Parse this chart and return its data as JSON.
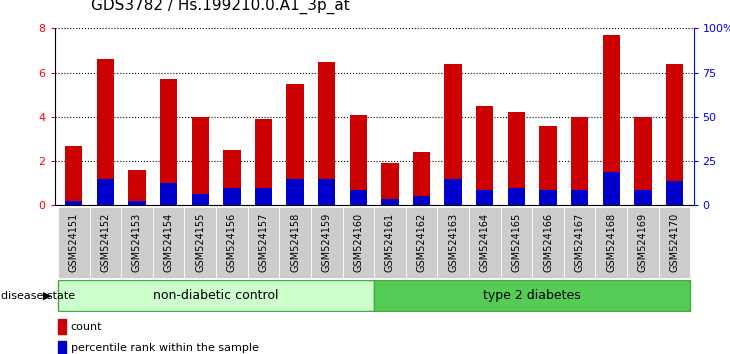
{
  "title": "GDS3782 / Hs.199210.0.A1_3p_at",
  "samples": [
    "GSM524151",
    "GSM524152",
    "GSM524153",
    "GSM524154",
    "GSM524155",
    "GSM524156",
    "GSM524157",
    "GSM524158",
    "GSM524159",
    "GSM524160",
    "GSM524161",
    "GSM524162",
    "GSM524163",
    "GSM524164",
    "GSM524165",
    "GSM524166",
    "GSM524167",
    "GSM524168",
    "GSM524169",
    "GSM524170"
  ],
  "count_values": [
    2.7,
    6.6,
    1.6,
    5.7,
    4.0,
    2.5,
    3.9,
    5.5,
    6.5,
    4.1,
    1.9,
    2.4,
    6.4,
    4.5,
    4.2,
    3.6,
    4.0,
    7.7,
    4.0,
    6.4
  ],
  "percentile_values": [
    0.2,
    1.2,
    0.2,
    1.0,
    0.5,
    0.8,
    0.8,
    1.2,
    1.2,
    0.7,
    0.3,
    0.4,
    1.2,
    0.7,
    0.8,
    0.7,
    0.7,
    1.5,
    0.7,
    1.1
  ],
  "bar_color_red": "#cc0000",
  "bar_color_blue": "#0000cc",
  "ylim_left": [
    0,
    8
  ],
  "ylim_right": [
    0,
    100
  ],
  "yticks_left": [
    0,
    2,
    4,
    6,
    8
  ],
  "yticks_right": [
    0,
    25,
    50,
    75,
    100
  ],
  "ytick_labels_right": [
    "0",
    "25",
    "50",
    "75",
    "100%"
  ],
  "group1_label": "non-diabetic control",
  "group2_label": "type 2 diabetes",
  "disease_state_label": "disease state",
  "legend_count_label": "count",
  "legend_percentile_label": "percentile rank within the sample",
  "bar_width": 0.55,
  "group1_bg": "#ccffcc",
  "group2_bg": "#55cc55",
  "tick_bg": "#cccccc",
  "title_fontsize": 11,
  "tick_label_fontsize": 7,
  "bg_color": "#ffffff"
}
